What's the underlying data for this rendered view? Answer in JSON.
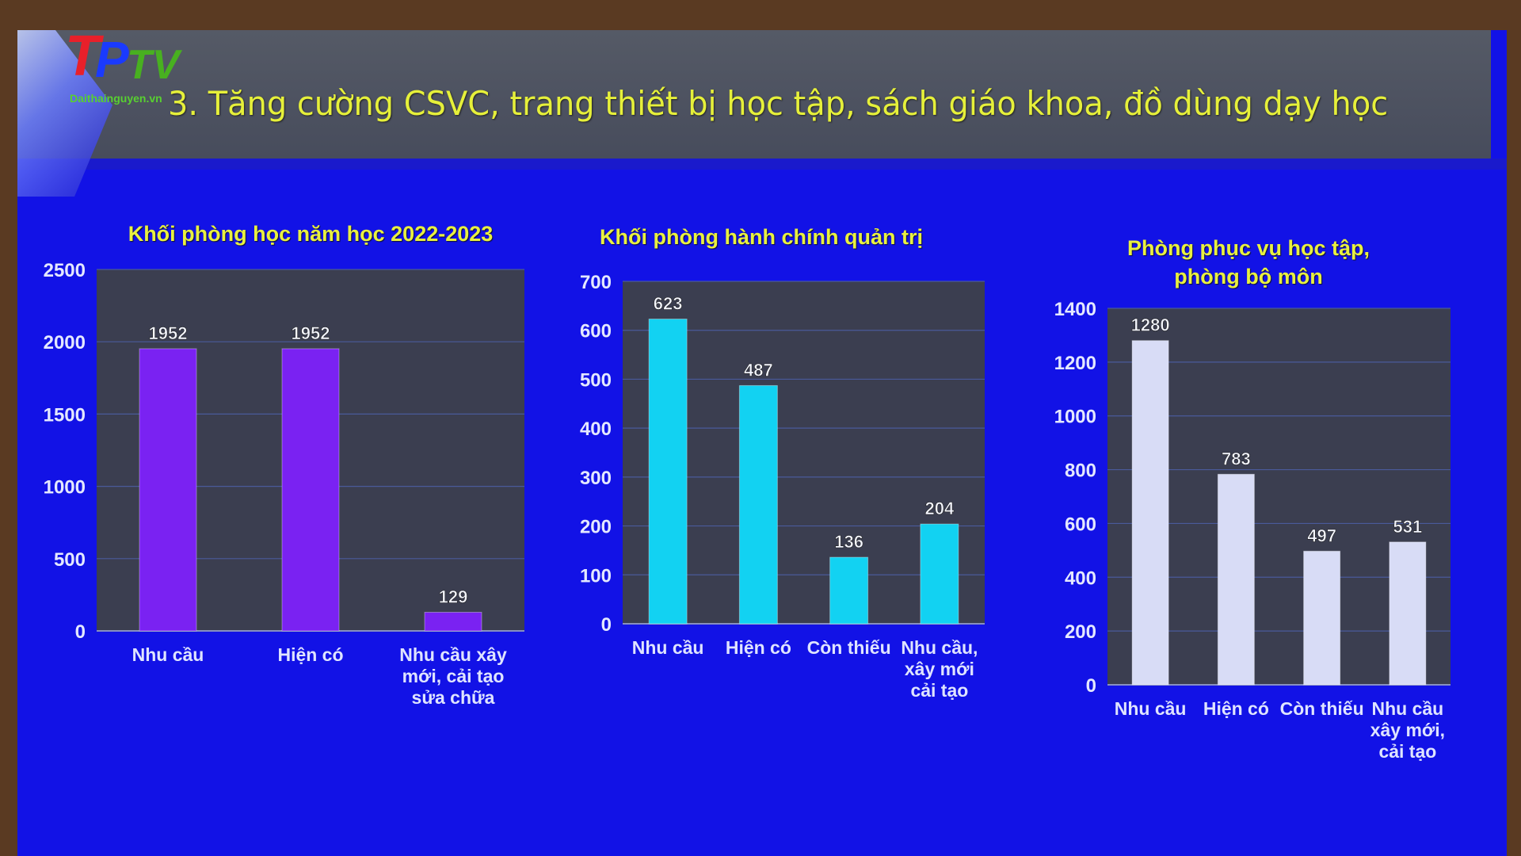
{
  "slide": {
    "title": "3. Tăng cường CSVC, trang thiết bị học tập, sách giáo khoa, đồ dùng dạy học",
    "logo": {
      "text": "TPTV",
      "site": "Daithainguyen.vn"
    },
    "background_color": "#1212e6"
  },
  "chart_data": [
    {
      "type": "bar",
      "title": "Khối phòng học năm học 2022-2023",
      "categories": [
        [
          "Nhu cầu"
        ],
        [
          "Hiện có"
        ],
        [
          "Nhu cầu xây",
          "mới, cải tạo",
          "sửa chữa"
        ]
      ],
      "values": [
        1952,
        1952,
        129
      ],
      "data_labels": [
        "1952",
        "1952",
        "129"
      ],
      "ylim": [
        0,
        2500
      ],
      "yticks": [
        "0",
        "500",
        "1000",
        "1500",
        "2000",
        "2500"
      ],
      "grid": true,
      "color": "#7a22f2"
    },
    {
      "type": "bar",
      "title": "Khối phòng hành chính quản trị",
      "categories": [
        [
          "Nhu cầu"
        ],
        [
          "Hiện có"
        ],
        [
          "Còn thiếu"
        ],
        [
          "Nhu cầu,",
          "xây mới",
          "cải tạo"
        ]
      ],
      "values": [
        623,
        487,
        136,
        204
      ],
      "data_labels": [
        "623",
        "487",
        "136",
        "204"
      ],
      "ylim": [
        0,
        700
      ],
      "yticks": [
        "0",
        "100",
        "200",
        "300",
        "400",
        "500",
        "600",
        "700"
      ],
      "grid": true,
      "color": "#12d2f2"
    },
    {
      "type": "bar",
      "title": "Phòng phục vụ học tập,\nphòng bộ môn",
      "categories": [
        [
          "Nhu cầu"
        ],
        [
          "Hiện có"
        ],
        [
          "Còn thiếu"
        ],
        [
          "Nhu cầu",
          "xây mới,",
          "cải tạo"
        ]
      ],
      "values": [
        1280,
        783,
        497,
        531
      ],
      "data_labels": [
        "1280",
        "783",
        "497",
        "531"
      ],
      "ylim": [
        0,
        1400
      ],
      "yticks": [
        "0",
        "200",
        "400",
        "600",
        "800",
        "1000",
        "1200",
        "1400"
      ],
      "grid": true,
      "color": "#d8dcf6"
    }
  ]
}
